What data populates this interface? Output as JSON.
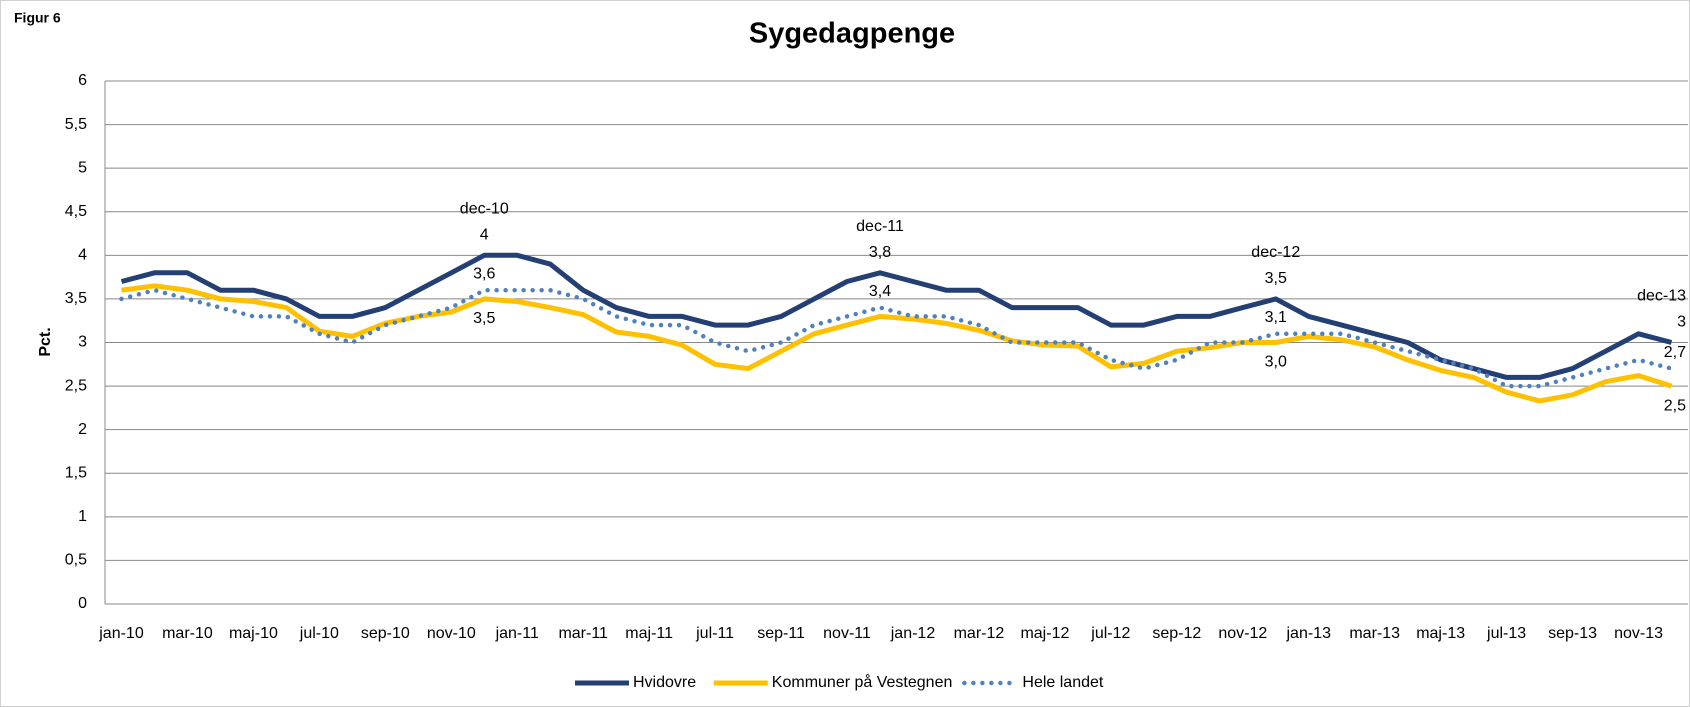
{
  "figure_label": "Figur 6",
  "chart_data": {
    "type": "line",
    "title": "Sygedagpenge",
    "y_label": "Pct.",
    "categories": [
      "jan-10",
      null,
      "mar-10",
      null,
      "maj-10",
      null,
      "jul-10",
      null,
      "sep-10",
      null,
      "nov-10",
      null,
      "jan-11",
      null,
      "mar-11",
      null,
      "maj-11",
      null,
      "jul-11",
      null,
      "sep-11",
      null,
      "nov-11",
      null,
      "jan-12",
      null,
      "mar-12",
      null,
      "maj-12",
      null,
      "jul-12",
      null,
      "sep-12",
      null,
      "nov-12",
      null,
      "jan-13",
      null,
      "mar-13",
      null,
      "maj-13",
      null,
      "jul-13",
      null,
      "sep-13",
      null,
      "nov-13",
      null
    ],
    "ylim": [
      0,
      6
    ],
    "yticks": [
      0,
      {
        "value": 0.5,
        "label": "0,5"
      },
      1,
      {
        "value": 1.5,
        "label": "1,5"
      },
      2,
      {
        "value": 2.5,
        "label": "2,5"
      },
      3,
      {
        "value": 3.5,
        "label": "3,5"
      },
      4,
      {
        "value": 4.5,
        "label": "4,5"
      },
      5,
      {
        "value": 5.5,
        "label": "5,5"
      },
      6
    ],
    "grid": true,
    "legend": "bottom",
    "series": [
      {
        "name": "Hvidovre",
        "color": "#243f74",
        "style": "solid",
        "values": [
          3.7,
          3.8,
          3.8,
          3.6,
          3.6,
          3.5,
          3.3,
          3.3,
          3.4,
          3.6,
          3.8,
          4.0,
          4.0,
          3.9,
          3.6,
          3.4,
          3.3,
          3.3,
          3.2,
          3.2,
          3.3,
          3.5,
          3.7,
          3.8,
          3.7,
          3.6,
          3.6,
          3.4,
          3.4,
          3.4,
          3.2,
          3.2,
          3.3,
          3.3,
          3.4,
          3.5,
          3.3,
          3.2,
          3.1,
          3.0,
          2.8,
          2.7,
          2.6,
          2.6,
          2.7,
          2.9,
          3.1,
          3.0
        ],
        "value_labels": [
          null,
          null,
          null,
          null,
          null,
          null,
          null,
          null,
          null,
          null,
          null,
          "4",
          null,
          null,
          null,
          null,
          null,
          null,
          null,
          null,
          null,
          null,
          null,
          "3,8",
          null,
          null,
          null,
          null,
          null,
          null,
          null,
          null,
          null,
          null,
          null,
          "3,5",
          null,
          null,
          null,
          null,
          null,
          null,
          null,
          null,
          null,
          null,
          null,
          "3"
        ],
        "point_labels": [
          null,
          null,
          null,
          null,
          null,
          null,
          null,
          null,
          null,
          null,
          null,
          "dec-10",
          null,
          null,
          null,
          null,
          null,
          null,
          null,
          null,
          null,
          null,
          null,
          "dec-11",
          null,
          null,
          null,
          null,
          null,
          null,
          null,
          null,
          null,
          null,
          null,
          "dec-12",
          null,
          null,
          null,
          null,
          null,
          null,
          null,
          null,
          null,
          null,
          null,
          "dec-13"
        ]
      },
      {
        "name": "Kommuner på Vestegnen",
        "color": "#ffc000",
        "style": "solid",
        "values": [
          3.6,
          3.65,
          3.6,
          3.5,
          3.47,
          3.4,
          3.13,
          3.07,
          3.22,
          3.3,
          3.35,
          3.5,
          3.47,
          3.4,
          3.32,
          3.12,
          3.07,
          2.97,
          2.75,
          2.7,
          2.9,
          3.1,
          3.2,
          3.3,
          3.27,
          3.22,
          3.14,
          3.02,
          2.97,
          2.96,
          2.72,
          2.76,
          2.9,
          2.94,
          3.0,
          3.0,
          3.07,
          3.03,
          2.95,
          2.8,
          2.68,
          2.6,
          2.43,
          2.33,
          2.4,
          2.55,
          2.62,
          2.5
        ],
        "value_labels": [
          null,
          null,
          null,
          null,
          null,
          null,
          null,
          null,
          null,
          null,
          null,
          "3,5",
          null,
          null,
          null,
          null,
          null,
          null,
          null,
          null,
          null,
          null,
          null,
          null,
          null,
          null,
          null,
          null,
          null,
          null,
          null,
          null,
          null,
          null,
          null,
          "3,0",
          null,
          null,
          null,
          null,
          null,
          null,
          null,
          null,
          null,
          null,
          null,
          "2,5"
        ]
      },
      {
        "name": "Hele landet",
        "color": "#4f81bd",
        "style": "dotted",
        "values": [
          3.5,
          3.6,
          3.5,
          3.4,
          3.3,
          3.3,
          3.1,
          3.0,
          3.2,
          3.3,
          3.4,
          3.6,
          3.6,
          3.6,
          3.5,
          3.3,
          3.2,
          3.2,
          3.0,
          2.9,
          3.0,
          3.2,
          3.3,
          3.4,
          3.3,
          3.3,
          3.2,
          3.0,
          3.0,
          3.0,
          2.8,
          2.7,
          2.8,
          3.0,
          3.0,
          3.1,
          3.1,
          3.1,
          3.0,
          2.9,
          2.8,
          2.7,
          2.5,
          2.5,
          2.6,
          2.7,
          2.8,
          2.7
        ],
        "value_labels": [
          null,
          null,
          null,
          null,
          null,
          null,
          null,
          null,
          null,
          null,
          null,
          "3,6",
          null,
          null,
          null,
          null,
          null,
          null,
          null,
          null,
          null,
          null,
          null,
          "3,4",
          null,
          null,
          null,
          null,
          null,
          null,
          null,
          null,
          null,
          null,
          null,
          "3,1",
          null,
          null,
          null,
          null,
          null,
          null,
          null,
          null,
          null,
          null,
          null,
          "2,7"
        ]
      }
    ]
  }
}
